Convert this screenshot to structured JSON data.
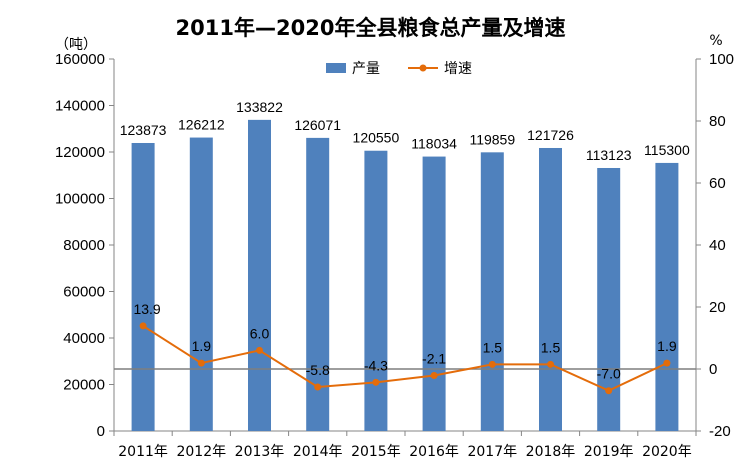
{
  "chart_data": {
    "type": "bar",
    "title": "2011年—2020年全县粮食总产量及增速",
    "y_unit_left": "（吨）",
    "y_unit_right": "%",
    "categories": [
      "2011年",
      "2012年",
      "2013年",
      "2014年",
      "2015年",
      "2016年",
      "2017年",
      "2018年",
      "2019年",
      "2020年"
    ],
    "series": [
      {
        "name": "产量",
        "type": "bar",
        "axis": "left",
        "values": [
          123873,
          126212,
          133822,
          126071,
          120550,
          118034,
          119859,
          121726,
          113123,
          115300
        ]
      },
      {
        "name": "增速",
        "type": "line",
        "axis": "right",
        "values": [
          13.9,
          1.9,
          6.0,
          -5.8,
          -4.3,
          -2.1,
          1.5,
          1.5,
          -7.0,
          1.9
        ]
      }
    ],
    "bar_labels": [
      "123873",
      "126212",
      "133822",
      "126071",
      "120550",
      "118034",
      "119859",
      "121726",
      "113123",
      "115300"
    ],
    "line_labels": [
      "13.9",
      "1.9",
      "6.0",
      "-5.8",
      "-4.3",
      "-2.1",
      "1.5",
      "1.5",
      "-7.0",
      "1.9"
    ],
    "ylim_left": [
      0,
      160000
    ],
    "yticks_left": [
      "0",
      "20000",
      "40000",
      "60000",
      "80000",
      "100000",
      "120000",
      "140000",
      "160000"
    ],
    "ylim_right": [
      -20,
      100
    ],
    "yticks_right": [
      "-20",
      "0",
      "20",
      "40",
      "60",
      "80",
      "100"
    ],
    "legend_position": "top",
    "grid": false,
    "colors": {
      "bar": "#4f81bd",
      "line": "#e46c0a",
      "zero_line": "#7f7f7f",
      "axis": "#868686"
    }
  }
}
